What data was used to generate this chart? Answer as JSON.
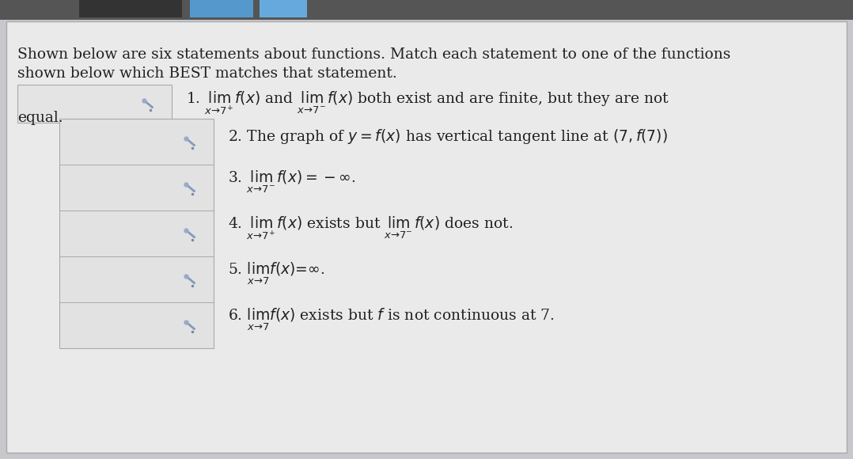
{
  "background_color": "#c8c8cc",
  "page_bg": "#e8e8e8",
  "box_fill": "#e0e0e0",
  "box_edge": "#aaaaaa",
  "grouped_box_fill": "#dcdcdc",
  "grouped_box_edge": "#aaaaaa",
  "title_line1": "Shown below are six statements about functions. Match each statement to one of the functions",
  "title_line2": "shown below which BEST matches that statement.",
  "text_color": "#222222",
  "title_fontsize": 13.5,
  "statement_fontsize": 13.5,
  "stmt1_line1": "1. $\\lim_{x \\to 7^+} f(x)$ and $\\lim_{x \\to 7^-} f(x)$ both exist and are finite, but they are not",
  "stmt1_line2": "equal.",
  "stmt2": "2. The graph of $y = f(x)$ has vertical tangent line at $(7, f(7))$",
  "stmt3": "3. $\\lim_{x \\to 7^-} f(x) = -\\infty$.",
  "stmt4": "4. $\\lim_{x \\to 7^+} f(x)$ exists but $\\lim_{x \\to 7^-} f(x)$ does not.",
  "stmt5": "5. $\\lim_{x \\to 7} f(x) = \\infty$.",
  "stmt6": "6. $\\lim_{x \\to 7} f(x)$ exists but $f$ is not continuous at 7."
}
